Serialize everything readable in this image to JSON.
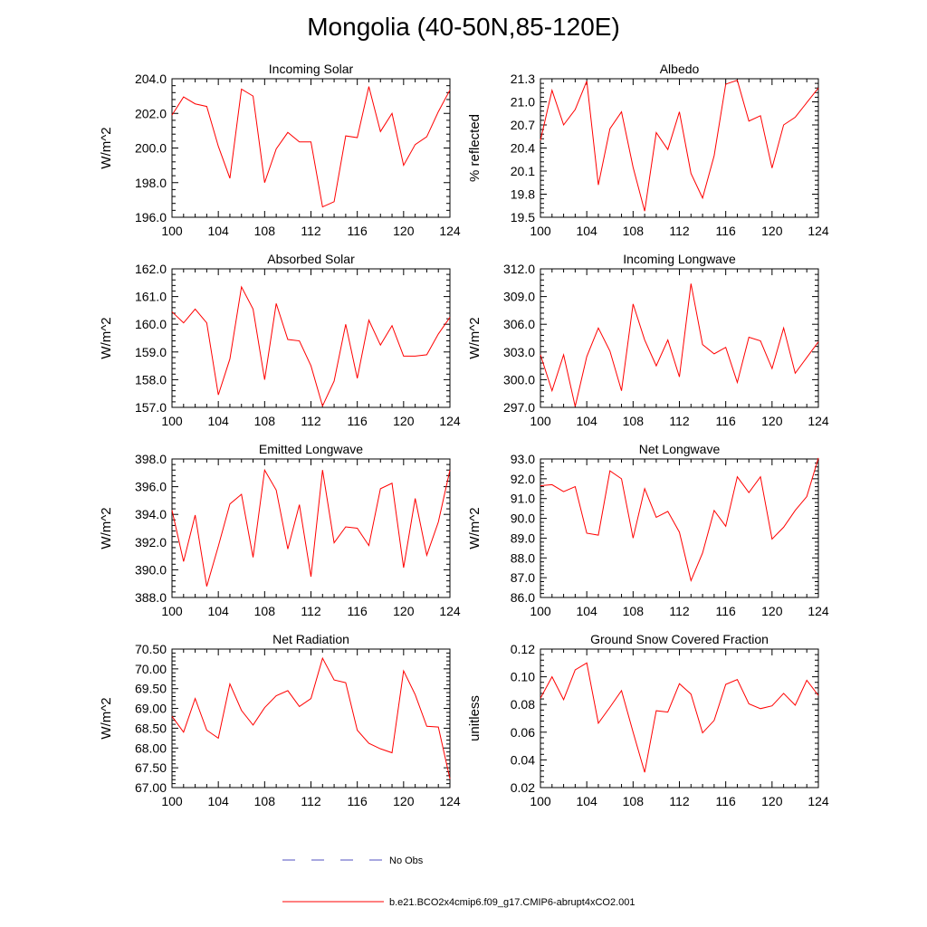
{
  "title": "Mongolia (40-50N,85-120E)",
  "colors": {
    "model": "#ff0000",
    "obs": "#5050c0",
    "axis": "#000000"
  },
  "legend": {
    "obs_label": "No Obs",
    "model_label": "b.e21.BCO2x4cmip6.f09_g17.CMIP6-abrupt4xCO2.001"
  },
  "chart_data": [
    {
      "type": "line",
      "title": "Incoming Solar",
      "ylabel": "W/m^2",
      "xlim": [
        100,
        124
      ],
      "ylim": [
        196,
        204
      ],
      "xticks": [
        100,
        104,
        108,
        112,
        116,
        120,
        124
      ],
      "yticks": [
        "196.0",
        "198.0",
        "200.0",
        "202.0",
        "204.0"
      ],
      "x": [
        100,
        101,
        102,
        103,
        104,
        105,
        106,
        107,
        108,
        109,
        110,
        111,
        112,
        113,
        114,
        115,
        116,
        117,
        118,
        119,
        120,
        121,
        122,
        123,
        124
      ],
      "series": [
        {
          "name": "b.e21.BCO2x4cmip6.f09_g17.CMIP6-abrupt4xCO2.001",
          "values": [
            201.9,
            202.95,
            202.55,
            202.4,
            200.1,
            198.25,
            203.4,
            203.0,
            198.0,
            199.95,
            200.9,
            200.35,
            200.35,
            196.6,
            196.9,
            200.7,
            200.6,
            203.55,
            200.95,
            202.0,
            199.0,
            200.2,
            200.65,
            202.1,
            203.35
          ]
        }
      ]
    },
    {
      "type": "line",
      "title": "Albedo",
      "ylabel": "% reflected",
      "xlim": [
        100,
        124
      ],
      "ylim": [
        19.5,
        21.3
      ],
      "xticks": [
        100,
        104,
        108,
        112,
        116,
        120,
        124
      ],
      "yticks": [
        "19.5",
        "19.8",
        "20.1",
        "20.4",
        "20.7",
        "21.0",
        "21.3"
      ],
      "x": [
        100,
        101,
        102,
        103,
        104,
        105,
        106,
        107,
        108,
        109,
        110,
        111,
        112,
        113,
        114,
        115,
        116,
        117,
        118,
        119,
        120,
        121,
        122,
        123,
        124
      ],
      "series": [
        {
          "name": "b.e21.BCO2x4cmip6.f09_g17.CMIP6-abrupt4xCO2.001",
          "values": [
            20.5,
            21.15,
            20.7,
            20.9,
            21.27,
            19.92,
            20.65,
            20.87,
            20.15,
            19.58,
            20.6,
            20.38,
            20.87,
            20.07,
            19.75,
            20.3,
            21.23,
            21.28,
            20.75,
            20.82,
            20.14,
            20.7,
            20.8,
            20.99,
            21.18
          ]
        }
      ]
    },
    {
      "type": "line",
      "title": "Absorbed Solar",
      "ylabel": "W/m^2",
      "xlim": [
        100,
        124
      ],
      "ylim": [
        157,
        162
      ],
      "xticks": [
        100,
        104,
        108,
        112,
        116,
        120,
        124
      ],
      "yticks": [
        "157.0",
        "158.0",
        "159.0",
        "160.0",
        "161.0",
        "162.0"
      ],
      "x": [
        100,
        101,
        102,
        103,
        104,
        105,
        106,
        107,
        108,
        109,
        110,
        111,
        112,
        113,
        114,
        115,
        116,
        117,
        118,
        119,
        120,
        121,
        122,
        123,
        124
      ],
      "series": [
        {
          "name": "b.e21.BCO2x4cmip6.f09_g17.CMIP6-abrupt4xCO2.001",
          "values": [
            160.45,
            160.05,
            160.55,
            160.05,
            157.45,
            158.75,
            161.35,
            160.55,
            158.0,
            160.75,
            159.45,
            159.4,
            158.5,
            157.05,
            157.95,
            160.0,
            158.05,
            160.15,
            159.25,
            159.95,
            158.85,
            158.85,
            158.9,
            159.65,
            160.25
          ]
        }
      ]
    },
    {
      "type": "line",
      "title": "Incoming Longwave",
      "ylabel": "W/m^2",
      "xlim": [
        100,
        124
      ],
      "ylim": [
        297,
        312
      ],
      "xticks": [
        100,
        104,
        108,
        112,
        116,
        120,
        124
      ],
      "yticks": [
        "297.0",
        "300.0",
        "303.0",
        "306.0",
        "309.0",
        "312.0"
      ],
      "x": [
        100,
        101,
        102,
        103,
        104,
        105,
        106,
        107,
        108,
        109,
        110,
        111,
        112,
        113,
        114,
        115,
        116,
        117,
        118,
        119,
        120,
        121,
        122,
        123,
        124
      ],
      "series": [
        {
          "name": "b.e21.BCO2x4cmip6.f09_g17.CMIP6-abrupt4xCO2.001",
          "values": [
            302.7,
            298.8,
            302.7,
            297.1,
            302.5,
            305.6,
            303.1,
            298.8,
            308.2,
            304.3,
            301.5,
            304.3,
            300.3,
            310.4,
            303.8,
            302.8,
            303.5,
            299.7,
            304.6,
            304.2,
            301.2,
            305.6,
            300.7,
            302.4,
            304.1
          ]
        }
      ]
    },
    {
      "type": "line",
      "title": "Emitted Longwave",
      "ylabel": "W/m^2",
      "xlim": [
        100,
        124
      ],
      "ylim": [
        388,
        398
      ],
      "xticks": [
        100,
        104,
        108,
        112,
        116,
        120,
        124
      ],
      "yticks": [
        "388.0",
        "390.0",
        "392.0",
        "394.0",
        "396.0",
        "398.0"
      ],
      "x": [
        100,
        101,
        102,
        103,
        104,
        105,
        106,
        107,
        108,
        109,
        110,
        111,
        112,
        113,
        114,
        115,
        116,
        117,
        118,
        119,
        120,
        121,
        122,
        123,
        124
      ],
      "series": [
        {
          "name": "b.e21.BCO2x4cmip6.f09_g17.CMIP6-abrupt4xCO2.001",
          "values": [
            394.3,
            390.6,
            393.95,
            388.8,
            391.7,
            394.75,
            395.45,
            390.9,
            397.2,
            395.75,
            391.5,
            394.7,
            389.5,
            397.2,
            391.95,
            393.1,
            393.0,
            391.75,
            395.85,
            396.25,
            390.15,
            395.15,
            391.05,
            393.45,
            397.2
          ]
        }
      ]
    },
    {
      "type": "line",
      "title": "Net Longwave",
      "ylabel": "W/m^2",
      "xlim": [
        100,
        124
      ],
      "ylim": [
        86,
        93
      ],
      "xticks": [
        100,
        104,
        108,
        112,
        116,
        120,
        124
      ],
      "yticks": [
        "86.0",
        "87.0",
        "88.0",
        "89.0",
        "90.0",
        "91.0",
        "92.0",
        "93.0"
      ],
      "x": [
        100,
        101,
        102,
        103,
        104,
        105,
        106,
        107,
        108,
        109,
        110,
        111,
        112,
        113,
        114,
        115,
        116,
        117,
        118,
        119,
        120,
        121,
        122,
        123,
        124
      ],
      "series": [
        {
          "name": "b.e21.BCO2x4cmip6.f09_g17.CMIP6-abrupt4xCO2.001",
          "values": [
            91.65,
            91.7,
            91.35,
            91.6,
            89.25,
            89.15,
            92.4,
            92.0,
            89.0,
            91.5,
            90.05,
            90.35,
            89.3,
            86.85,
            88.25,
            90.4,
            89.6,
            92.1,
            91.3,
            92.1,
            88.95,
            89.55,
            90.4,
            91.1,
            93.05
          ]
        }
      ]
    },
    {
      "type": "line",
      "title": "Net Radiation",
      "ylabel": "W/m^2",
      "xlim": [
        100,
        124
      ],
      "ylim": [
        67,
        70.5
      ],
      "xticks": [
        100,
        104,
        108,
        112,
        116,
        120,
        124
      ],
      "yticks": [
        "67.00",
        "67.50",
        "68.00",
        "68.50",
        "69.00",
        "69.50",
        "70.00",
        "70.50"
      ],
      "x": [
        100,
        101,
        102,
        103,
        104,
        105,
        106,
        107,
        108,
        109,
        110,
        111,
        112,
        113,
        114,
        115,
        116,
        117,
        118,
        119,
        120,
        121,
        122,
        123,
        124
      ],
      "series": [
        {
          "name": "b.e21.BCO2x4cmip6.f09_g17.CMIP6-abrupt4xCO2.001",
          "values": [
            68.8,
            68.4,
            69.25,
            68.45,
            68.25,
            69.62,
            68.95,
            68.58,
            69.02,
            69.32,
            69.45,
            69.05,
            69.25,
            70.27,
            69.72,
            69.65,
            68.45,
            68.12,
            67.98,
            67.88,
            69.95,
            69.35,
            68.55,
            68.53,
            67.22
          ]
        }
      ]
    },
    {
      "type": "line",
      "title": "Ground Snow Covered Fraction",
      "ylabel": "unitless",
      "xlim": [
        100,
        124
      ],
      "ylim": [
        0.02,
        0.12
      ],
      "xticks": [
        100,
        104,
        108,
        112,
        116,
        120,
        124
      ],
      "yticks": [
        "0.02",
        "0.04",
        "0.06",
        "0.08",
        "0.10",
        "0.12"
      ],
      "x": [
        100,
        101,
        102,
        103,
        104,
        105,
        106,
        107,
        108,
        109,
        110,
        111,
        112,
        113,
        114,
        115,
        116,
        117,
        118,
        119,
        120,
        121,
        122,
        123,
        124
      ],
      "series": [
        {
          "name": "b.e21.BCO2x4cmip6.f09_g17.CMIP6-abrupt4xCO2.001",
          "values": [
            0.0845,
            0.1,
            0.0835,
            0.105,
            0.11,
            0.0665,
            0.078,
            0.09,
            0.06,
            0.031,
            0.0755,
            0.0745,
            0.095,
            0.0875,
            0.0595,
            0.0685,
            0.0945,
            0.098,
            0.0805,
            0.077,
            0.079,
            0.088,
            0.0795,
            0.0975,
            0.0865
          ]
        }
      ]
    }
  ]
}
